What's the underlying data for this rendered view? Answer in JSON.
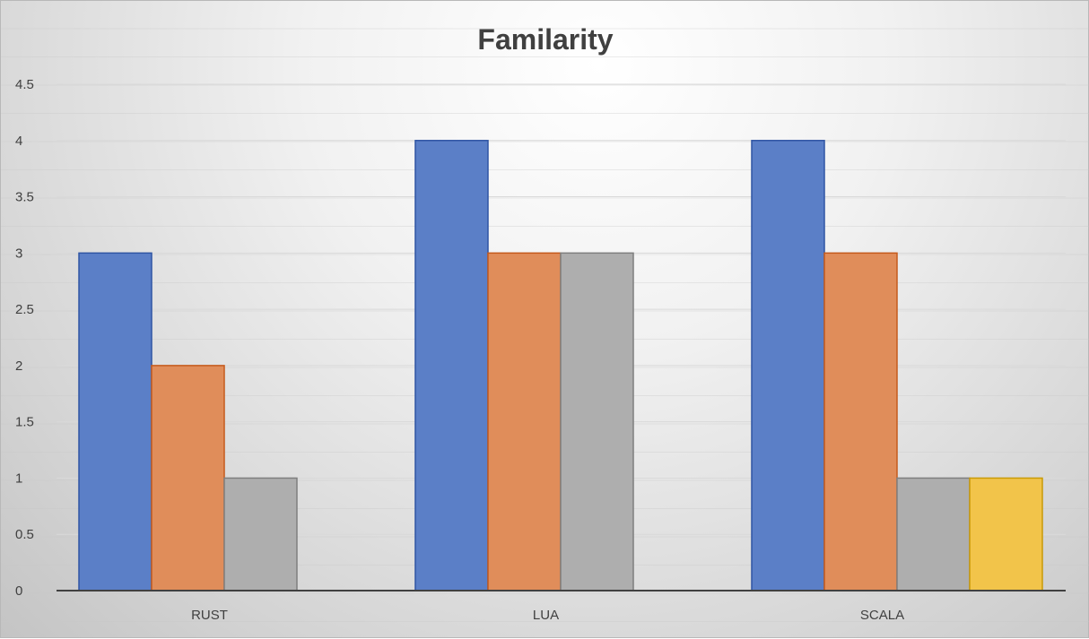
{
  "chart_data": {
    "type": "bar",
    "title": "Familarity",
    "xlabel": "",
    "ylabel": "",
    "categories": [
      "RUST",
      "LUA",
      "SCALA"
    ],
    "series": [
      {
        "values": [
          3,
          4,
          4
        ],
        "color": "#5b7fc7",
        "stroke": "#2f55a4"
      },
      {
        "values": [
          2,
          3,
          3
        ],
        "color": "#e08d5a",
        "stroke": "#c55a1c"
      },
      {
        "values": [
          1,
          3,
          1
        ],
        "color": "#aeaeae",
        "stroke": "#7f7f7f"
      },
      {
        "values": [
          null,
          null,
          1
        ],
        "color": "#f2c44a",
        "stroke": "#c99a06"
      }
    ],
    "ylim": [
      0,
      4.5
    ],
    "yticks": [
      "0",
      "0.5",
      "1",
      "1.5",
      "2",
      "2.5",
      "3",
      "3.5",
      "4",
      "4.5"
    ],
    "grid": true,
    "legend": "none"
  }
}
